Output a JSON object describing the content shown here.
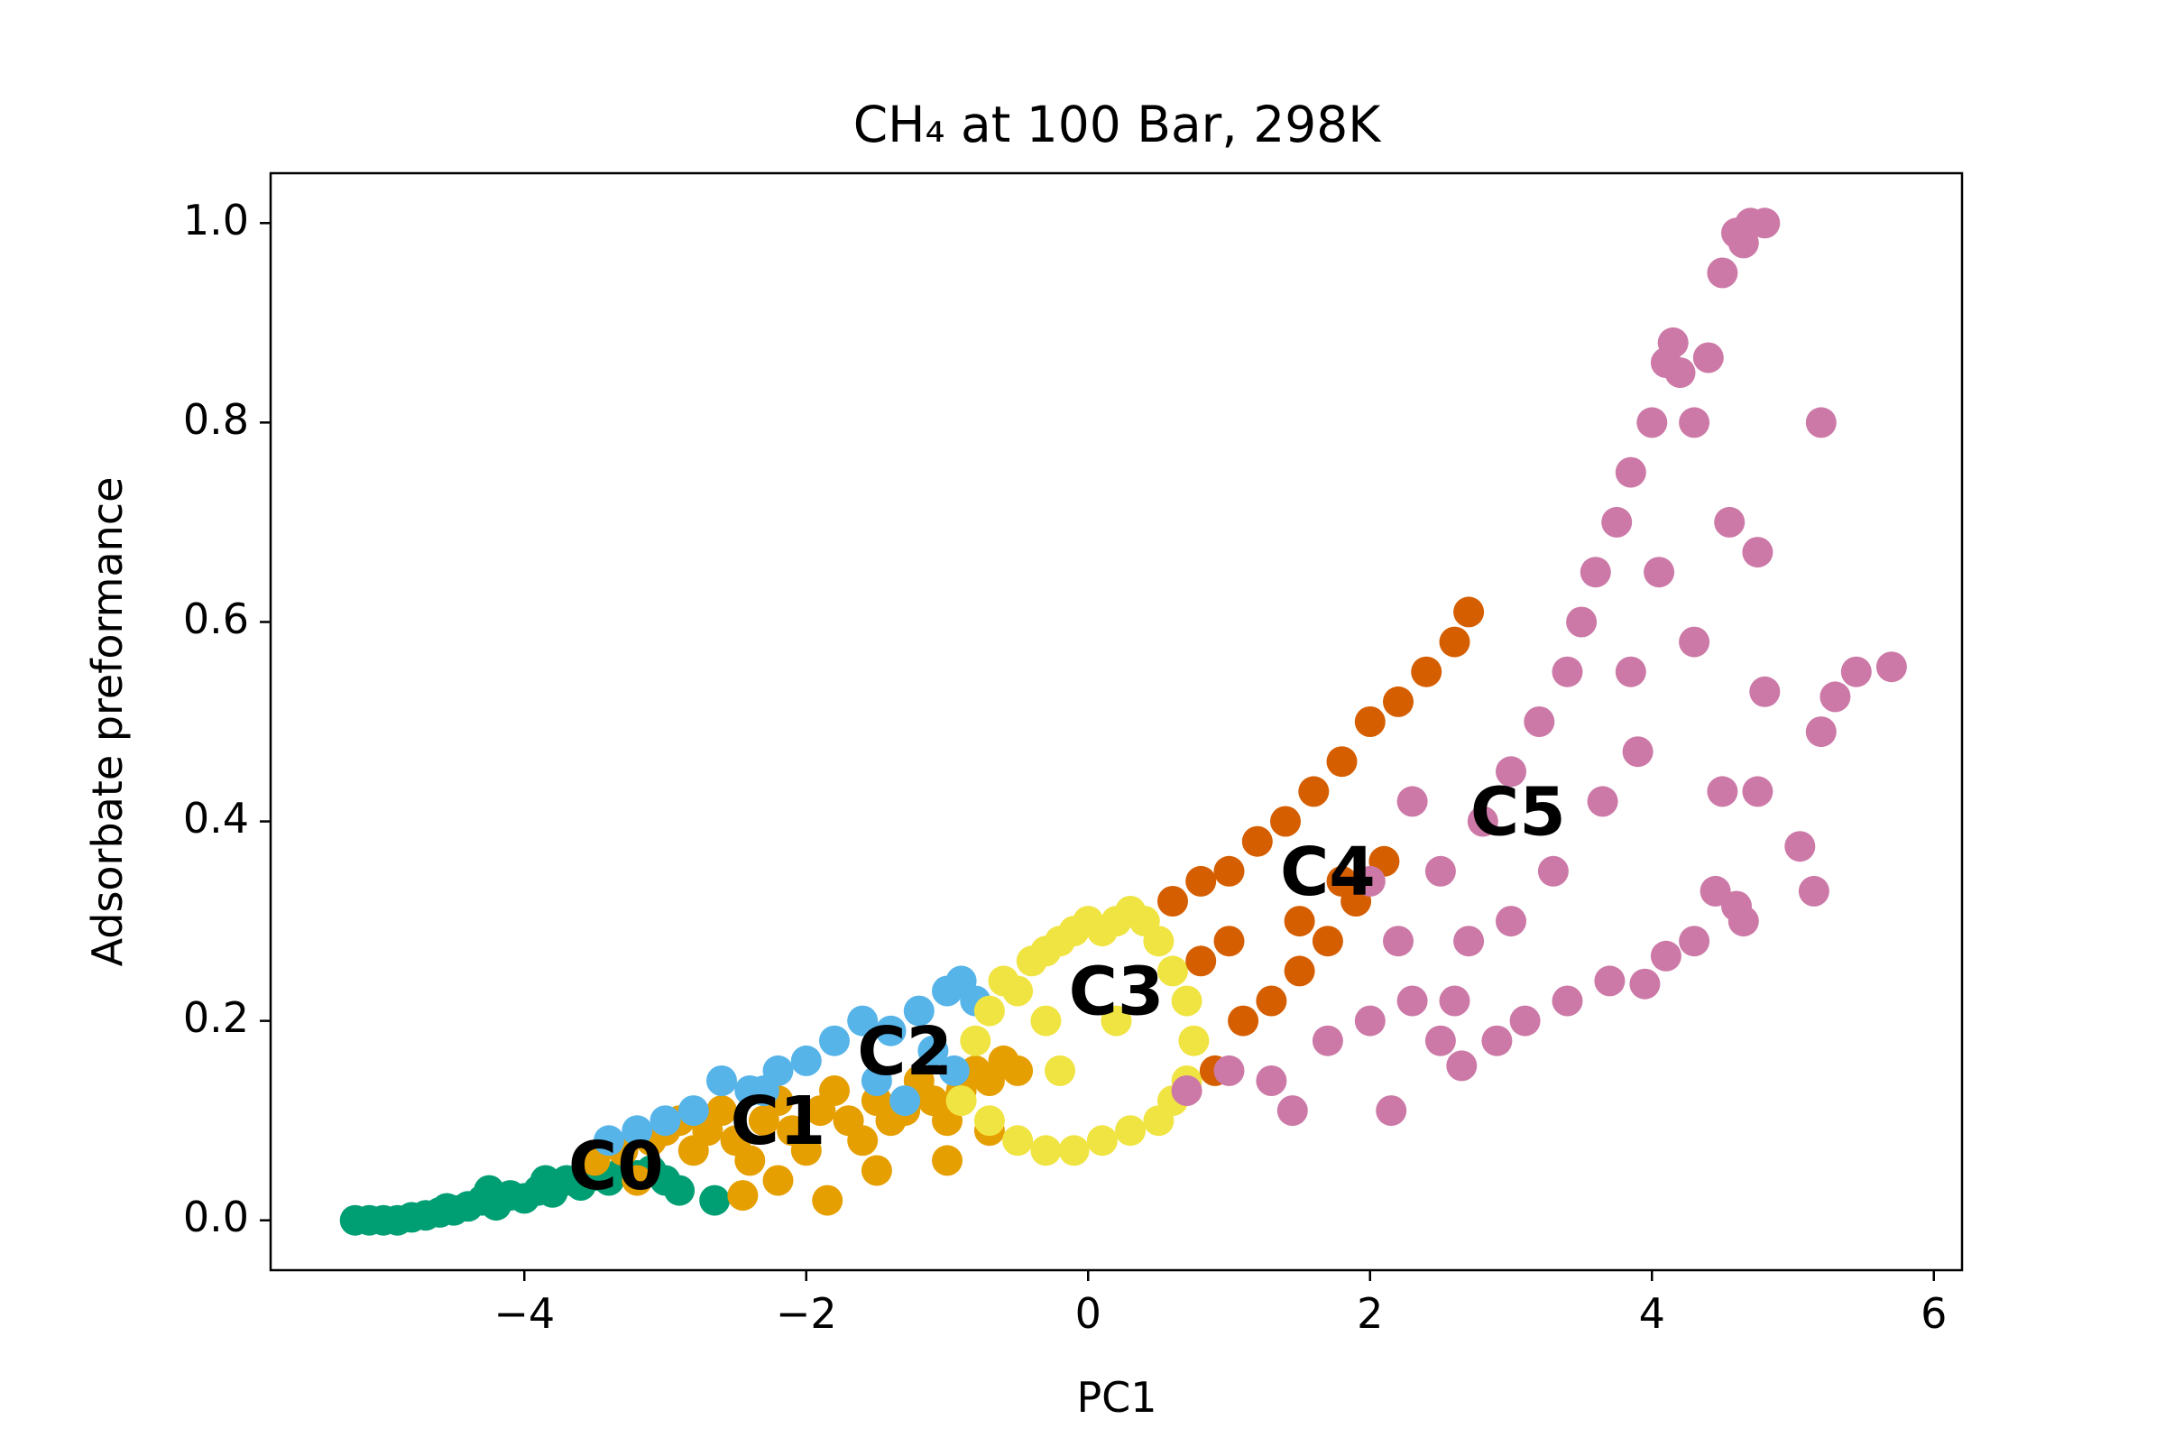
{
  "chart_data": {
    "type": "scatter",
    "title": "CH₄ at 100 Bar, 298K",
    "xlabel": "PC1",
    "ylabel": "Adsorbate preformance",
    "xlim": [
      -5.8,
      6.2
    ],
    "ylim": [
      -0.05,
      1.05
    ],
    "x_ticks": [
      {
        "value": -4,
        "label": "−4"
      },
      {
        "value": -2,
        "label": "−2"
      },
      {
        "value": 0,
        "label": "0"
      },
      {
        "value": 2,
        "label": "2"
      },
      {
        "value": 4,
        "label": "4"
      },
      {
        "value": 6,
        "label": "6"
      }
    ],
    "y_ticks": [
      {
        "value": 0.0,
        "label": "0.0"
      },
      {
        "value": 0.2,
        "label": "0.2"
      },
      {
        "value": 0.4,
        "label": "0.4"
      },
      {
        "value": 0.6,
        "label": "0.6"
      },
      {
        "value": 0.8,
        "label": "0.8"
      },
      {
        "value": 1.0,
        "label": "1.0"
      }
    ],
    "grid": false,
    "legend": "none",
    "series": [
      {
        "name": "C0",
        "color": "#009E73",
        "label": {
          "text": "C0",
          "x": -3.35,
          "y": 0.05
        },
        "points": [
          [
            -5.2,
            0.0
          ],
          [
            -5.1,
            0.0
          ],
          [
            -5.0,
            0.0
          ],
          [
            -4.9,
            0.0
          ],
          [
            -4.8,
            0.003
          ],
          [
            -4.7,
            0.005
          ],
          [
            -4.6,
            0.008
          ],
          [
            -4.5,
            0.01
          ],
          [
            -4.4,
            0.014
          ],
          [
            -4.3,
            0.02
          ],
          [
            -4.2,
            0.015
          ],
          [
            -4.1,
            0.025
          ],
          [
            -4.0,
            0.022
          ],
          [
            -3.9,
            0.03
          ],
          [
            -3.8,
            0.028
          ],
          [
            -3.7,
            0.04
          ],
          [
            -3.6,
            0.035
          ],
          [
            -3.5,
            0.045
          ],
          [
            -3.4,
            0.04
          ],
          [
            -3.3,
            0.05
          ],
          [
            -3.2,
            0.045
          ],
          [
            -3.1,
            0.05
          ],
          [
            -3.0,
            0.04
          ],
          [
            -2.9,
            0.03
          ],
          [
            -2.65,
            0.02
          ],
          [
            -4.25,
            0.03
          ],
          [
            -4.55,
            0.012
          ],
          [
            -3.85,
            0.04
          ]
        ]
      },
      {
        "name": "C1",
        "color": "#E69F00",
        "label": {
          "text": "C1",
          "x": -2.2,
          "y": 0.095
        },
        "points": [
          [
            -3.5,
            0.06
          ],
          [
            -3.3,
            0.07
          ],
          [
            -3.1,
            0.08
          ],
          [
            -3.0,
            0.09
          ],
          [
            -2.9,
            0.1
          ],
          [
            -2.8,
            0.07
          ],
          [
            -2.7,
            0.09
          ],
          [
            -2.6,
            0.11
          ],
          [
            -2.5,
            0.08
          ],
          [
            -2.4,
            0.06
          ],
          [
            -2.3,
            0.1
          ],
          [
            -2.2,
            0.12
          ],
          [
            -2.1,
            0.09
          ],
          [
            -2.0,
            0.07
          ],
          [
            -1.9,
            0.11
          ],
          [
            -1.8,
            0.13
          ],
          [
            -1.7,
            0.1
          ],
          [
            -1.6,
            0.08
          ],
          [
            -1.5,
            0.12
          ],
          [
            -1.4,
            0.1
          ],
          [
            -1.3,
            0.11
          ],
          [
            -1.2,
            0.14
          ],
          [
            -1.1,
            0.12
          ],
          [
            -1.0,
            0.1
          ],
          [
            -0.9,
            0.13
          ],
          [
            -0.8,
            0.15
          ],
          [
            -0.7,
            0.14
          ],
          [
            -0.6,
            0.16
          ],
          [
            -0.5,
            0.15
          ],
          [
            -1.85,
            0.02
          ],
          [
            -2.45,
            0.025
          ],
          [
            -1.5,
            0.05
          ],
          [
            -1.0,
            0.06
          ],
          [
            -0.7,
            0.09
          ],
          [
            -3.2,
            0.04
          ],
          [
            -2.2,
            0.04
          ]
        ]
      },
      {
        "name": "C2",
        "color": "#56B4E9",
        "label": {
          "text": "C2",
          "x": -1.3,
          "y": 0.165
        },
        "points": [
          [
            -3.4,
            0.08
          ],
          [
            -3.2,
            0.09
          ],
          [
            -3.0,
            0.1
          ],
          [
            -2.8,
            0.11
          ],
          [
            -2.6,
            0.14
          ],
          [
            -2.4,
            0.13
          ],
          [
            -2.2,
            0.15
          ],
          [
            -2.0,
            0.16
          ],
          [
            -1.8,
            0.18
          ],
          [
            -1.6,
            0.2
          ],
          [
            -1.4,
            0.19
          ],
          [
            -1.2,
            0.21
          ],
          [
            -1.0,
            0.23
          ],
          [
            -0.9,
            0.24
          ],
          [
            -0.8,
            0.22
          ],
          [
            -1.5,
            0.14
          ],
          [
            -1.1,
            0.17
          ],
          [
            -2.3,
            0.13
          ],
          [
            -0.95,
            0.15
          ],
          [
            -1.3,
            0.12
          ]
        ]
      },
      {
        "name": "C3",
        "color": "#F0E442",
        "label": {
          "text": "C3",
          "x": 0.2,
          "y": 0.225
        },
        "points": [
          [
            -0.9,
            0.12
          ],
          [
            -0.8,
            0.18
          ],
          [
            -0.7,
            0.21
          ],
          [
            -0.6,
            0.24
          ],
          [
            -0.5,
            0.23
          ],
          [
            -0.4,
            0.26
          ],
          [
            -0.3,
            0.27
          ],
          [
            -0.2,
            0.28
          ],
          [
            -0.1,
            0.29
          ],
          [
            0.0,
            0.3
          ],
          [
            0.1,
            0.29
          ],
          [
            0.2,
            0.3
          ],
          [
            0.3,
            0.31
          ],
          [
            0.4,
            0.3
          ],
          [
            0.5,
            0.28
          ],
          [
            0.6,
            0.25
          ],
          [
            0.7,
            0.22
          ],
          [
            0.75,
            0.18
          ],
          [
            0.7,
            0.14
          ],
          [
            0.6,
            0.12
          ],
          [
            0.5,
            0.1
          ],
          [
            0.3,
            0.09
          ],
          [
            0.1,
            0.08
          ],
          [
            -0.1,
            0.07
          ],
          [
            -0.3,
            0.07
          ],
          [
            -0.5,
            0.08
          ],
          [
            -0.7,
            0.1
          ],
          [
            -0.2,
            0.15
          ],
          [
            0.2,
            0.2
          ],
          [
            -0.3,
            0.2
          ]
        ]
      },
      {
        "name": "C4",
        "color": "#D55E00",
        "label": {
          "text": "C4",
          "x": 1.7,
          "y": 0.345
        },
        "points": [
          [
            0.6,
            0.32
          ],
          [
            0.8,
            0.34
          ],
          [
            1.0,
            0.35
          ],
          [
            1.2,
            0.38
          ],
          [
            1.4,
            0.4
          ],
          [
            1.6,
            0.43
          ],
          [
            1.8,
            0.46
          ],
          [
            2.0,
            0.5
          ],
          [
            2.2,
            0.52
          ],
          [
            2.4,
            0.55
          ],
          [
            2.6,
            0.58
          ],
          [
            2.7,
            0.61
          ],
          [
            0.9,
            0.15
          ],
          [
            1.1,
            0.2
          ],
          [
            1.3,
            0.22
          ],
          [
            1.5,
            0.25
          ],
          [
            1.7,
            0.28
          ],
          [
            1.9,
            0.32
          ],
          [
            2.1,
            0.36
          ],
          [
            0.8,
            0.26
          ],
          [
            1.0,
            0.28
          ],
          [
            1.5,
            0.3
          ],
          [
            1.8,
            0.34
          ]
        ]
      },
      {
        "name": "C5",
        "color": "#CC79A7",
        "label": {
          "text": "C5",
          "x": 3.05,
          "y": 0.405
        },
        "points": [
          [
            0.7,
            0.13
          ],
          [
            1.0,
            0.15
          ],
          [
            1.3,
            0.14
          ],
          [
            1.45,
            0.11
          ],
          [
            1.7,
            0.18
          ],
          [
            2.0,
            0.2
          ],
          [
            2.15,
            0.11
          ],
          [
            2.3,
            0.22
          ],
          [
            2.5,
            0.18
          ],
          [
            2.6,
            0.22
          ],
          [
            2.65,
            0.155
          ],
          [
            2.9,
            0.18
          ],
          [
            3.1,
            0.2
          ],
          [
            3.4,
            0.22
          ],
          [
            3.7,
            0.24
          ],
          [
            3.95,
            0.237
          ],
          [
            4.1,
            0.265
          ],
          [
            4.3,
            0.28
          ],
          [
            4.6,
            0.315
          ],
          [
            4.65,
            0.3
          ],
          [
            5.15,
            0.33
          ],
          [
            5.05,
            0.375
          ],
          [
            5.45,
            0.55
          ],
          [
            5.7,
            0.555
          ],
          [
            5.3,
            0.525
          ],
          [
            4.8,
            0.53
          ],
          [
            5.2,
            0.49
          ],
          [
            2.5,
            0.35
          ],
          [
            2.8,
            0.4
          ],
          [
            3.0,
            0.45
          ],
          [
            3.2,
            0.5
          ],
          [
            3.4,
            0.55
          ],
          [
            3.5,
            0.6
          ],
          [
            3.6,
            0.65
          ],
          [
            3.75,
            0.7
          ],
          [
            3.85,
            0.75
          ],
          [
            4.0,
            0.8
          ],
          [
            4.1,
            0.86
          ],
          [
            4.15,
            0.88
          ],
          [
            4.2,
            0.85
          ],
          [
            4.4,
            0.865
          ],
          [
            4.3,
            0.8
          ],
          [
            5.2,
            0.8
          ],
          [
            4.5,
            0.95
          ],
          [
            4.6,
            0.99
          ],
          [
            4.7,
            1.0
          ],
          [
            4.8,
            1.0
          ],
          [
            4.65,
            0.98
          ],
          [
            4.55,
            0.7
          ],
          [
            4.75,
            0.67
          ],
          [
            4.05,
            0.65
          ],
          [
            4.3,
            0.58
          ],
          [
            3.85,
            0.55
          ],
          [
            4.5,
            0.43
          ],
          [
            4.75,
            0.43
          ],
          [
            4.45,
            0.33
          ],
          [
            3.65,
            0.42
          ],
          [
            3.3,
            0.35
          ],
          [
            2.2,
            0.28
          ],
          [
            2.0,
            0.34
          ],
          [
            2.7,
            0.28
          ],
          [
            3.0,
            0.3
          ],
          [
            2.3,
            0.42
          ],
          [
            3.9,
            0.47
          ]
        ]
      }
    ]
  }
}
